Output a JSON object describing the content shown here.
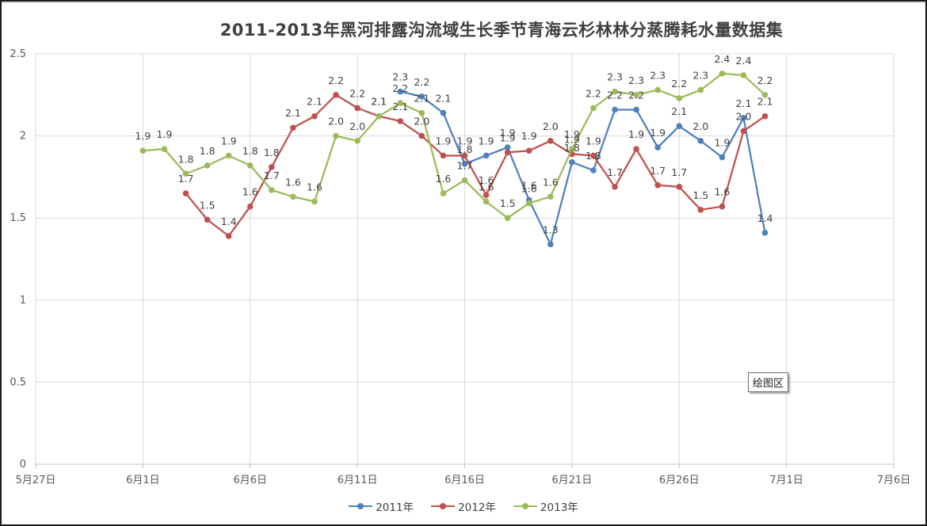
{
  "chart_data": {
    "type": "line",
    "title": "2011-2013年黑河排露沟流域生长季节青海云杉林林分蒸腾耗水量数据集",
    "xlabel": "",
    "ylabel": "",
    "ylim": [
      0,
      2.5
    ],
    "y_ticks": [
      "0",
      "0.5",
      "1",
      "1.5",
      "2",
      "2.5"
    ],
    "x_ticks": [
      "5月27日",
      "6月1日",
      "6月6日",
      "6月11日",
      "6月16日",
      "6月21日",
      "6月26日",
      "7月1日",
      "7月6日"
    ],
    "x_range": [
      "5月27日",
      "7月6日"
    ],
    "grid": true,
    "legend_position": "bottom",
    "series": [
      {
        "name": "2011年",
        "color": "#4f81bd",
        "points": [
          {
            "x": "6月13日",
            "y": 2.27,
            "label": "2.3"
          },
          {
            "x": "6月14日",
            "y": 2.24,
            "label": "2.2"
          },
          {
            "x": "6月15日",
            "y": 2.14,
            "label": "2.1"
          },
          {
            "x": "6月16日",
            "y": 1.83,
            "label": "1.8"
          },
          {
            "x": "6月17日",
            "y": 1.88,
            "label": "1.9"
          },
          {
            "x": "6月18日",
            "y": 1.93,
            "label": "1.9"
          },
          {
            "x": "6月19日",
            "y": 1.61,
            "label": "1.6"
          },
          {
            "x": "6月20日",
            "y": 1.34,
            "label": "1.3"
          },
          {
            "x": "6月21日",
            "y": 1.84,
            "label": "1.8"
          },
          {
            "x": "6月22日",
            "y": 1.79,
            "label": "1.8"
          },
          {
            "x": "6月23日",
            "y": 2.16,
            "label": "2.2"
          },
          {
            "x": "6月24日",
            "y": 2.16,
            "label": "2.2"
          },
          {
            "x": "6月25日",
            "y": 1.93,
            "label": "1.9"
          },
          {
            "x": "6月26日",
            "y": 2.06,
            "label": "2.1"
          },
          {
            "x": "6月27日",
            "y": 1.97,
            "label": "2.0"
          },
          {
            "x": "6月28日",
            "y": 1.87,
            "label": "1.9"
          },
          {
            "x": "6月29日",
            "y": 2.11,
            "label": "2.1"
          },
          {
            "x": "6月30日",
            "y": 1.41,
            "label": "1.4"
          }
        ]
      },
      {
        "name": "2012年",
        "color": "#c0504d",
        "points": [
          {
            "x": "6月3日",
            "y": 1.65,
            "label": "1.7"
          },
          {
            "x": "6月4日",
            "y": 1.49,
            "label": "1.5"
          },
          {
            "x": "6月5日",
            "y": 1.39,
            "label": "1.4"
          },
          {
            "x": "6月6日",
            "y": 1.57,
            "label": "1.6"
          },
          {
            "x": "6月7日",
            "y": 1.81,
            "label": "1.8"
          },
          {
            "x": "6月8日",
            "y": 2.05,
            "label": "2.1"
          },
          {
            "x": "6月9日",
            "y": 2.12,
            "label": "2.1"
          },
          {
            "x": "6月10日",
            "y": 2.25,
            "label": "2.2"
          },
          {
            "x": "6月11日",
            "y": 2.17,
            "label": "2.2"
          },
          {
            "x": "6月12日",
            "y": 2.12,
            "label": "2.1"
          },
          {
            "x": "6月13日",
            "y": 2.09,
            "label": "2.1"
          },
          {
            "x": "6月14日",
            "y": 2.0,
            "label": "2.0"
          },
          {
            "x": "6月15日",
            "y": 1.88,
            "label": "1.9"
          },
          {
            "x": "6月16日",
            "y": 1.88,
            "label": "1.9"
          },
          {
            "x": "6月17日",
            "y": 1.64,
            "label": "1.6"
          },
          {
            "x": "6月18日",
            "y": 1.9,
            "label": "1.9"
          },
          {
            "x": "6月19日",
            "y": 1.91,
            "label": "1.9"
          },
          {
            "x": "6月20日",
            "y": 1.97,
            "label": "2.0"
          },
          {
            "x": "6月21日",
            "y": 1.89,
            "label": "1.9"
          },
          {
            "x": "6月22日",
            "y": 1.88,
            "label": "1.9"
          },
          {
            "x": "6月23日",
            "y": 1.69,
            "label": "1.7"
          },
          {
            "x": "6月24日",
            "y": 1.92,
            "label": "1.9"
          },
          {
            "x": "6月25日",
            "y": 1.7,
            "label": "1.7"
          },
          {
            "x": "6月26日",
            "y": 1.69,
            "label": "1.7"
          },
          {
            "x": "6月27日",
            "y": 1.55,
            "label": "1.5"
          },
          {
            "x": "6月28日",
            "y": 1.57,
            "label": "1.6"
          },
          {
            "x": "6月29日",
            "y": 2.03,
            "label": "2.0"
          },
          {
            "x": "6月30日",
            "y": 2.12,
            "label": "2.1"
          }
        ]
      },
      {
        "name": "2013年",
        "color": "#9bbb59",
        "points": [
          {
            "x": "6月1日",
            "y": 1.91,
            "label": "1.9"
          },
          {
            "x": "6月2日",
            "y": 1.92,
            "label": "1.9"
          },
          {
            "x": "6月3日",
            "y": 1.77,
            "label": "1.8"
          },
          {
            "x": "6月4日",
            "y": 1.82,
            "label": "1.8"
          },
          {
            "x": "6月5日",
            "y": 1.88,
            "label": "1.9"
          },
          {
            "x": "6月6日",
            "y": 1.82,
            "label": "1.8"
          },
          {
            "x": "6月7日",
            "y": 1.67,
            "label": "1.7"
          },
          {
            "x": "6月8日",
            "y": 1.63,
            "label": "1.6"
          },
          {
            "x": "6月9日",
            "y": 1.6,
            "label": "1.6"
          },
          {
            "x": "6月10日",
            "y": 2.0,
            "label": "2.0"
          },
          {
            "x": "6月11日",
            "y": 1.97,
            "label": "2.0"
          },
          {
            "x": "6月12日",
            "y": 2.12,
            "label": "2.1"
          },
          {
            "x": "6月13日",
            "y": 2.2,
            "label": "2.2"
          },
          {
            "x": "6月14日",
            "y": 2.14,
            "label": "2.1"
          },
          {
            "x": "6月15日",
            "y": 1.65,
            "label": "1.6"
          },
          {
            "x": "6月16日",
            "y": 1.73,
            "label": "1.7"
          },
          {
            "x": "6月17日",
            "y": 1.6,
            "label": "1.6"
          },
          {
            "x": "6月18日",
            "y": 1.5,
            "label": "1.5"
          },
          {
            "x": "6月19日",
            "y": 1.59,
            "label": "1.6"
          },
          {
            "x": "6月20日",
            "y": 1.63,
            "label": "1.6"
          },
          {
            "x": "6月21日",
            "y": 1.92,
            "label": "1.9"
          },
          {
            "x": "6月22日",
            "y": 2.17,
            "label": "2.2"
          },
          {
            "x": "6月23日",
            "y": 2.27,
            "label": "2.3"
          },
          {
            "x": "6月24日",
            "y": 2.25,
            "label": "2.3"
          },
          {
            "x": "6月25日",
            "y": 2.28,
            "label": "2.3"
          },
          {
            "x": "6月26日",
            "y": 2.23,
            "label": "2.2"
          },
          {
            "x": "6月27日",
            "y": 2.28,
            "label": "2.3"
          },
          {
            "x": "6月28日",
            "y": 2.38,
            "label": "2.4"
          },
          {
            "x": "6月29日",
            "y": 2.37,
            "label": "2.4"
          },
          {
            "x": "6月30日",
            "y": 2.25,
            "label": "2.2"
          }
        ]
      }
    ]
  },
  "plot_area_tag": "绘图区"
}
